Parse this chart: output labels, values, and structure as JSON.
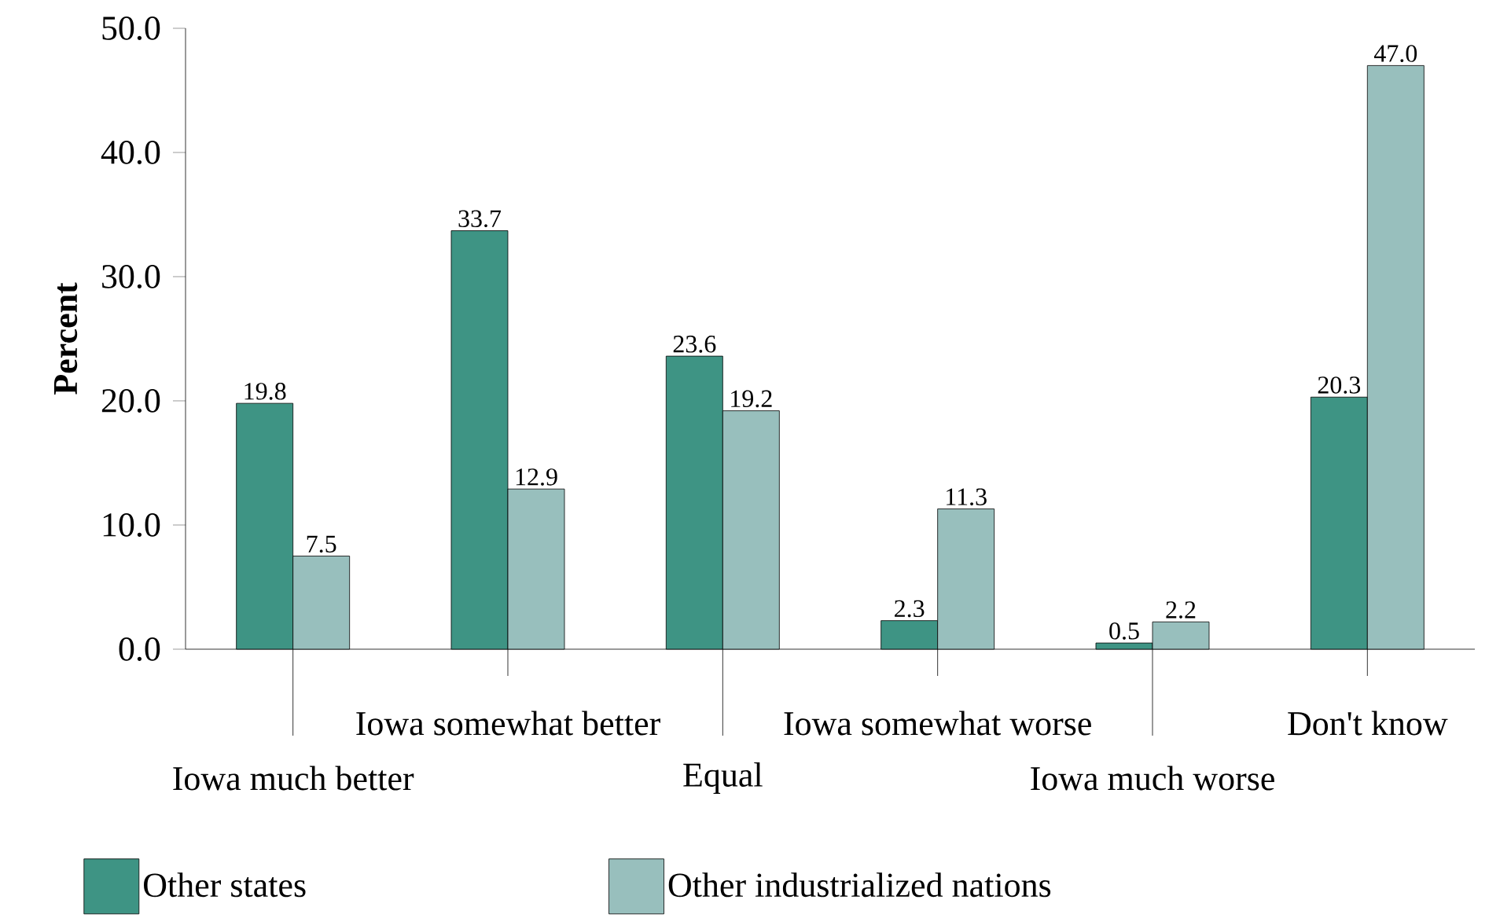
{
  "chart_data": {
    "type": "bar",
    "ylabel": "Percent",
    "categories": [
      "Iowa much better",
      "Iowa somewhat better",
      "Equal",
      "Iowa somewhat worse",
      "Iowa much worse",
      "Don't know"
    ],
    "series": [
      {
        "name": "Other states",
        "color": "#3e9484",
        "values": [
          19.8,
          33.7,
          23.6,
          2.3,
          0.5,
          20.3
        ],
        "value_labels": [
          "19.8",
          "33.7",
          "23.6",
          "2.3",
          "0.5",
          "20.3"
        ]
      },
      {
        "name": "Other industrialized nations",
        "color": "#98bfbd",
        "values": [
          7.5,
          12.9,
          19.2,
          11.3,
          2.2,
          47.0
        ],
        "value_labels": [
          "7.5",
          "12.9",
          "19.2",
          "11.3",
          "2.2",
          "47.0"
        ]
      }
    ],
    "ylim": [
      0,
      50
    ],
    "yticks": [
      {
        "value": 0,
        "label": "0.0"
      },
      {
        "value": 10,
        "label": "10.0"
      },
      {
        "value": 20,
        "label": "20.0"
      },
      {
        "value": 30,
        "label": "30.0"
      },
      {
        "value": 40,
        "label": "40.0"
      },
      {
        "value": 50,
        "label": "50.0"
      }
    ],
    "legend": "bottom",
    "grid": false
  }
}
